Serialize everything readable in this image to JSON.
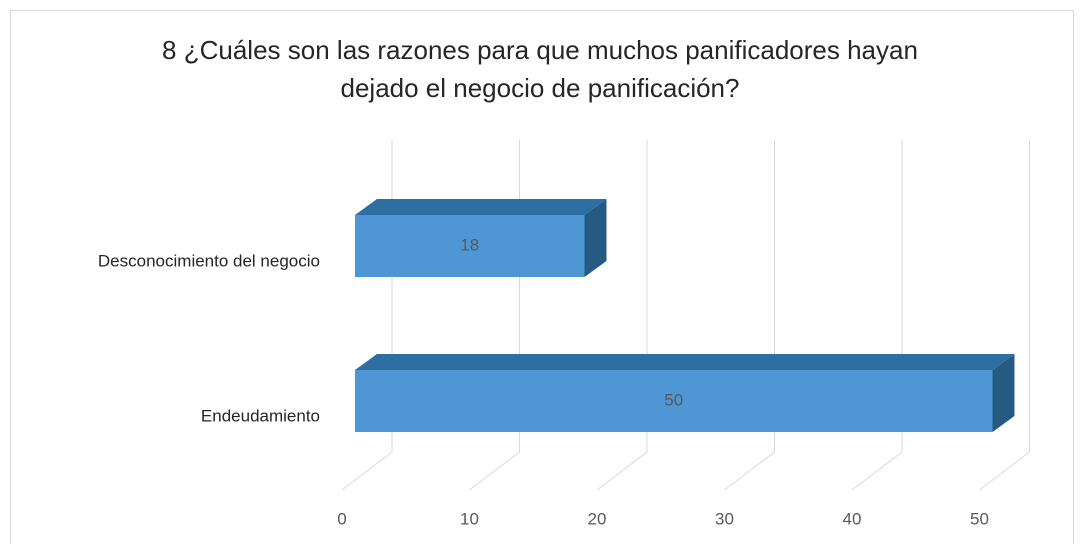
{
  "chart_data": {
    "type": "bar",
    "orientation": "horizontal",
    "title": [
      "8 ¿Cuáles son las razones para que muchos panificadores hayan",
      "dejado el negocio de panificación?"
    ],
    "categories": [
      "Desconocimiento del negocio",
      "Endeudamiento"
    ],
    "values": [
      18,
      50
    ],
    "color": "#4f97d4",
    "xlim": [
      0,
      50
    ],
    "xticks": [
      0,
      10,
      20,
      30,
      40,
      50
    ],
    "grid": true
  }
}
